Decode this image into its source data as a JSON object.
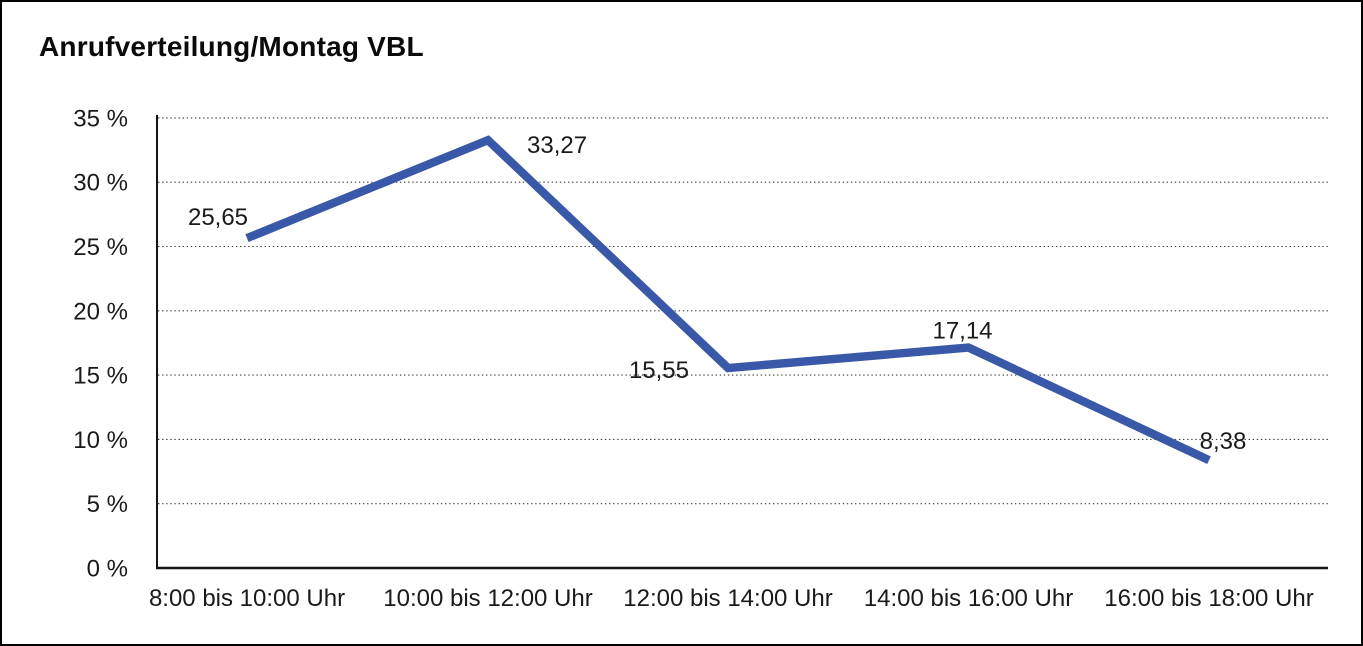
{
  "chart_data": {
    "type": "line",
    "title": "Anrufverteilung/Montag VBL",
    "categories": [
      "8:00 bis 10:00 Uhr",
      "10:00 bis 12:00 Uhr",
      "12:00 bis 14:00 Uhr",
      "14:00 bis 16:00 Uhr",
      "16:00 bis 18:00 Uhr"
    ],
    "series": [
      {
        "name": "Anrufverteilung Montag VBL",
        "values": [
          25.65,
          33.27,
          15.55,
          17.14,
          8.38
        ]
      }
    ],
    "value_labels": [
      "25,65",
      "33,27",
      "15,55",
      "17,14",
      "8,38"
    ],
    "y_ticks": [
      "0 %",
      "5 %",
      "10 %",
      "15 %",
      "20 %",
      "25 %",
      "30 %",
      "35 %"
    ],
    "ylabel": "",
    "xlabel": "",
    "ylim": [
      0,
      35
    ],
    "y_step": 5,
    "grid": "horizontal-dotted",
    "legend": "none",
    "line_color": "#3A58A8",
    "axis_color": "#141414",
    "grid_color": "#3f3f3f",
    "text_color": "#1a1a1a",
    "background_color": "#ffffff"
  }
}
